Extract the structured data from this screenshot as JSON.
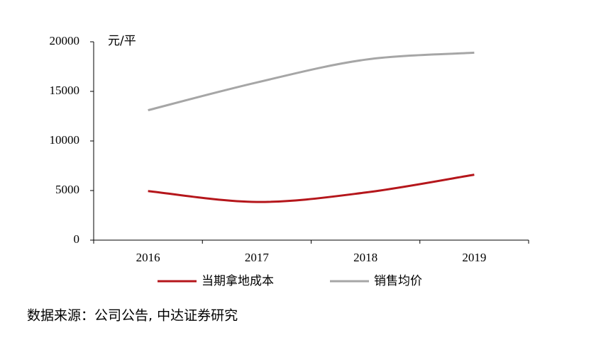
{
  "chart_data": {
    "type": "line",
    "y_unit": "元/平",
    "categories": [
      "2016",
      "2017",
      "2018",
      "2019"
    ],
    "series": [
      {
        "name": "当期拿地成本",
        "color": "#b5161b",
        "values": [
          4950,
          3850,
          4800,
          6600
        ]
      },
      {
        "name": "销售均价",
        "color": "#a6a6a6",
        "values": [
          13100,
          15900,
          18200,
          18900
        ]
      }
    ],
    "ylim": [
      0,
      20000
    ],
    "yticks": [
      0,
      5000,
      10000,
      15000,
      20000
    ],
    "legend": "bottom",
    "source": "数据来源：公司公告, 中达证券研究"
  }
}
